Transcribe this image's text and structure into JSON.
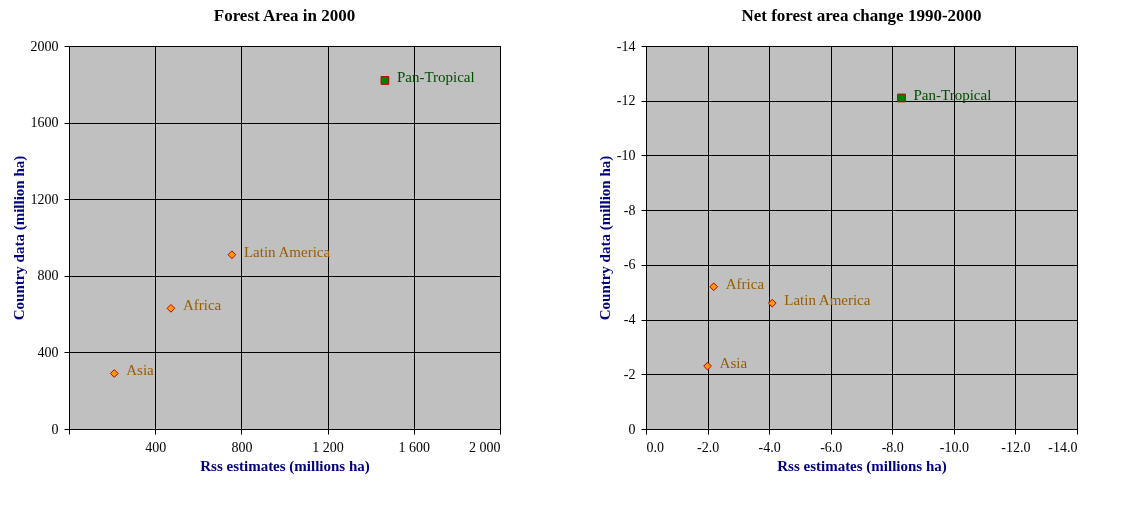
{
  "chart_data": [
    {
      "type": "scatter",
      "title": "Forest Area in 2000",
      "xlabel": "Rss estimates (millions ha)",
      "ylabel": "Country data (million ha)",
      "xlim": [
        0,
        2000
      ],
      "xticks": [
        {
          "value": 0,
          "label": null
        },
        400,
        800,
        {
          "value": 1200,
          "label": "1 200"
        },
        {
          "value": 1600,
          "label": "1 600"
        },
        {
          "value": 2000,
          "label": "2 000"
        }
      ],
      "ylim": [
        0,
        2000
      ],
      "yticks": [
        0,
        400,
        800,
        1200,
        1600,
        2000
      ],
      "grid": true,
      "series": [
        {
          "name": "Asia",
          "color": "#ff9900",
          "marker": "diamond",
          "x": [
            210
          ],
          "values": [
            290
          ]
        },
        {
          "name": "Africa",
          "color": "#ff9900",
          "marker": "diamond",
          "x": [
            473
          ],
          "values": [
            630
          ]
        },
        {
          "name": "Latin America",
          "color": "#ff9900",
          "marker": "diamond",
          "x": [
            756
          ],
          "values": [
            910
          ]
        },
        {
          "name": "Pan-Tropical",
          "color": "#008000",
          "marker": "square",
          "x": [
            1466
          ],
          "values": [
            1820
          ]
        }
      ]
    },
    {
      "type": "scatter",
      "title": "Net forest area change 1990-2000",
      "xlabel": "Rss estimates (millions ha)",
      "ylabel": "Country data (million ha)",
      "xlim": [
        0,
        -14
      ],
      "xticks": [
        {
          "value": 0,
          "label": "0.0"
        },
        {
          "value": -2,
          "label": "-2.0"
        },
        {
          "value": -4,
          "label": "-4.0"
        },
        {
          "value": -6,
          "label": "-6.0"
        },
        {
          "value": -8,
          "label": "-8.0"
        },
        {
          "value": -10,
          "label": "-10.0"
        },
        {
          "value": -12,
          "label": "-12.0"
        },
        {
          "value": -14,
          "label": "-14.0"
        }
      ],
      "ylim": [
        0,
        -14
      ],
      "yticks": [
        0,
        -2,
        -4,
        -6,
        -8,
        -10,
        -12,
        -14
      ],
      "grid": true,
      "series": [
        {
          "name": "Asia",
          "color": "#ff9900",
          "marker": "diamond",
          "x": [
            -2.0
          ],
          "values": [
            -2.3
          ]
        },
        {
          "name": "Africa",
          "color": "#ff9900",
          "marker": "diamond",
          "x": [
            -2.2
          ],
          "values": [
            -5.2
          ]
        },
        {
          "name": "Latin America",
          "color": "#ff9900",
          "marker": "diamond",
          "x": [
            -4.1
          ],
          "values": [
            -4.6
          ]
        },
        {
          "name": "Pan-Tropical",
          "color": "#008000",
          "marker": "square",
          "x": [
            -8.3
          ],
          "values": [
            -12.1
          ]
        }
      ]
    }
  ]
}
